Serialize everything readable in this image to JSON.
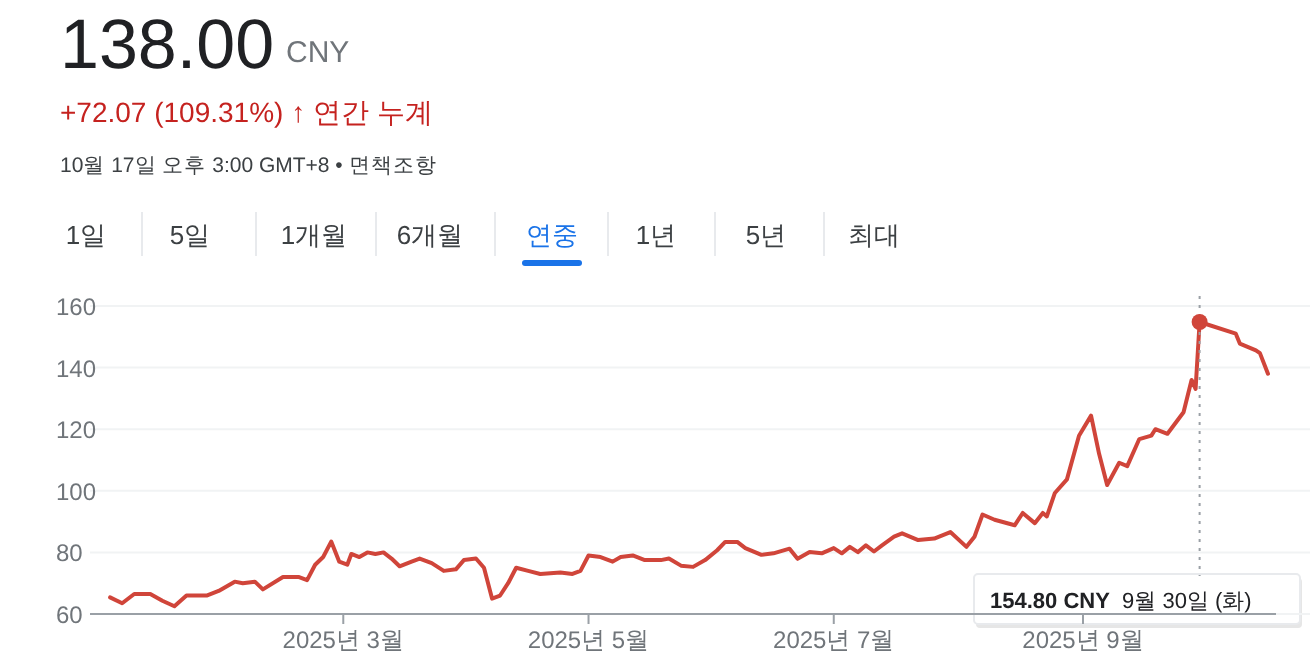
{
  "chart_data": {
    "type": "line",
    "title": "138.00",
    "annotations": [
      "CNY",
      "+72.07 (109.31%) ↑ 연간 누계",
      "10월 17일 오후 3:00 GMT+8 • 면책조항",
      "1일",
      "5일",
      "1개월",
      "6개월",
      "연중",
      "1년",
      "5년",
      "최대",
      "**154.80 CNY**  9월 30일 (화)"
    ],
    "ref_lines": [
      {
        "axis": "x",
        "value": "2025-09-30",
        "color": "#9aa0a6",
        "line_style": "dotted"
      }
    ],
    "x": [
      "2025-01-02",
      "2025-01-05",
      "2025-01-08",
      "2025-01-12",
      "2025-01-15",
      "2025-01-18",
      "2025-01-21",
      "2025-01-26",
      "2025-01-29",
      "2025-02-02",
      "2025-02-04",
      "2025-02-07",
      "2025-02-09",
      "2025-02-14",
      "2025-02-18",
      "2025-02-20",
      "2025-02-22",
      "2025-02-24",
      "2025-02-26",
      "2025-02-28",
      "2025-03-02",
      "2025-03-03",
      "2025-03-05",
      "2025-03-07",
      "2025-03-09",
      "2025-03-11",
      "2025-03-13",
      "2025-03-15",
      "2025-03-18",
      "2025-03-20",
      "2025-03-23",
      "2025-03-26",
      "2025-03-29",
      "2025-03-31",
      "2025-04-03",
      "2025-04-05",
      "2025-04-07",
      "2025-04-09",
      "2025-04-11",
      "2025-04-13",
      "2025-04-16",
      "2025-04-19",
      "2025-04-24",
      "2025-04-27",
      "2025-04-29",
      "2025-05-01",
      "2025-05-04",
      "2025-05-07",
      "2025-05-09",
      "2025-05-12",
      "2025-05-15",
      "2025-05-19",
      "2025-05-21",
      "2025-05-24",
      "2025-05-27",
      "2025-05-30",
      "2025-06-02",
      "2025-06-04",
      "2025-06-07",
      "2025-06-09",
      "2025-06-13",
      "2025-06-16",
      "2025-06-20",
      "2025-06-22",
      "2025-06-25",
      "2025-06-28",
      "2025-07-01",
      "2025-07-03",
      "2025-07-05",
      "2025-07-07",
      "2025-07-09",
      "2025-07-11",
      "2025-07-13",
      "2025-07-16",
      "2025-07-18",
      "2025-07-22",
      "2025-07-26",
      "2025-07-30",
      "2025-08-03",
      "2025-08-05",
      "2025-08-07",
      "2025-08-10",
      "2025-08-15",
      "2025-08-17",
      "2025-08-20",
      "2025-08-22",
      "2025-08-23",
      "2025-08-25",
      "2025-08-28",
      "2025-08-31",
      "2025-09-03",
      "2025-09-05",
      "2025-09-07",
      "2025-09-10",
      "2025-09-12",
      "2025-09-15",
      "2025-09-18",
      "2025-09-19",
      "2025-09-22",
      "2025-09-26",
      "2025-09-28",
      "2025-09-29",
      "2025-09-30",
      "2025-10-09",
      "2025-10-10",
      "2025-10-14",
      "2025-10-15",
      "2025-10-17"
    ],
    "series": [
      {
        "color": "#d0453a",
        "values": [
          65.4,
          63.5,
          66.5,
          66.5,
          64.3,
          62.5,
          66,
          66,
          67.5,
          70.5,
          70,
          70.5,
          68,
          72,
          72,
          71,
          76,
          78.5,
          83.5,
          77,
          76,
          79.5,
          78.5,
          80,
          79.5,
          80,
          78,
          75.5,
          77,
          78,
          76.5,
          74,
          74.5,
          77.5,
          78,
          75,
          65,
          66,
          70,
          75,
          74,
          73,
          73.5,
          73,
          74,
          79,
          78.5,
          77,
          78.5,
          79,
          77.5,
          77.5,
          78,
          75.7,
          75.3,
          77.5,
          80.7,
          83.4,
          83.4,
          81.4,
          79.2,
          79.7,
          81.2,
          77.9,
          80.1,
          79.7,
          81.4,
          79.7,
          81.8,
          80.1,
          82.3,
          80.3,
          82.3,
          85.1,
          86.2,
          84,
          84.5,
          86.6,
          81.8,
          85.1,
          92.3,
          90.6,
          88.8,
          92.8,
          89.5,
          92.8,
          91.7,
          99.3,
          103.7,
          117.9,
          124.4,
          112,
          101.9,
          109.1,
          108,
          116.8,
          117.9,
          120,
          118.5,
          125.5,
          136,
          133.1,
          154.8,
          151,
          147.8,
          145.6,
          144.7,
          138
        ]
      }
    ],
    "xlim": [
      "2024-12-28",
      "2025-10-19"
    ],
    "xticks": [
      {
        "value": "2025-03-01",
        "label": "2025년 3월"
      },
      {
        "value": "2025-05-01",
        "label": "2025년 5월"
      },
      {
        "value": "2025-07-01",
        "label": "2025년 7월"
      },
      {
        "value": "2025-09-01",
        "label": "2025년 9월"
      }
    ],
    "ylim": [
      60,
      160
    ],
    "yticks": [
      60,
      80,
      100,
      120,
      140,
      160
    ],
    "grid": "y",
    "marker": "none",
    "line_style": "solid"
  }
}
